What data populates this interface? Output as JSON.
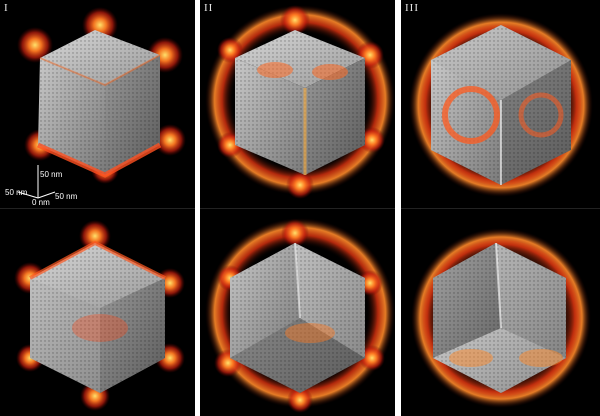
{
  "panels": [
    {
      "label": "I"
    },
    {
      "label": "II"
    },
    {
      "label": "III"
    }
  ],
  "scale_bar": {
    "up": "50 nm",
    "left": "50 nm",
    "right": "50 nm",
    "origin": "0 nm"
  },
  "colors": {
    "background": "#000000",
    "cube": "#b8b8b8",
    "field_hot": "#ff5a1e",
    "field_peak": "#ffd94a"
  }
}
